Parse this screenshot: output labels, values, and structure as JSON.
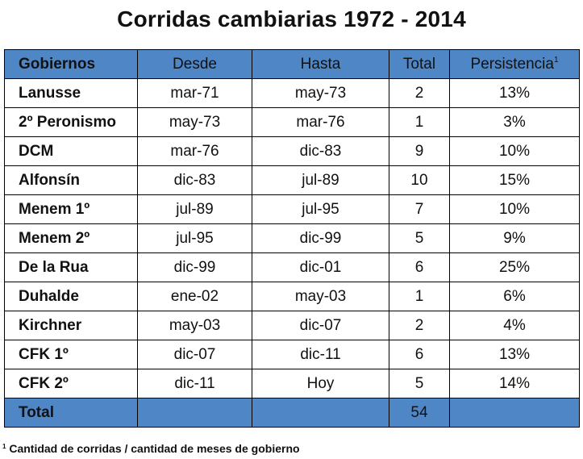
{
  "title": "Corridas cambiarias 1972 - 2014",
  "table": {
    "headers": {
      "gobiernos": "Gobiernos",
      "desde": "Desde",
      "hasta": "Hasta",
      "total": "Total",
      "persistencia": "Persistencia",
      "persistencia_sup": "1"
    },
    "rows": [
      {
        "gobierno": "Lanusse",
        "desde": "mar-71",
        "hasta": "may-73",
        "total": "2",
        "persistencia": "13%"
      },
      {
        "gobierno": "2º Peronismo",
        "desde": "may-73",
        "hasta": "mar-76",
        "total": "1",
        "persistencia": "3%"
      },
      {
        "gobierno": "DCM",
        "desde": "mar-76",
        "hasta": "dic-83",
        "total": "9",
        "persistencia": "10%"
      },
      {
        "gobierno": "Alfonsín",
        "desde": "dic-83",
        "hasta": "jul-89",
        "total": "10",
        "persistencia": "15%"
      },
      {
        "gobierno": "Menem 1º",
        "desde": "jul-89",
        "hasta": "jul-95",
        "total": "7",
        "persistencia": "10%"
      },
      {
        "gobierno": "Menem 2º",
        "desde": "jul-95",
        "hasta": "dic-99",
        "total": "5",
        "persistencia": "9%"
      },
      {
        "gobierno": "De la Rua",
        "desde": "dic-99",
        "hasta": "dic-01",
        "total": "6",
        "persistencia": "25%"
      },
      {
        "gobierno": "Duhalde",
        "desde": "ene-02",
        "hasta": "may-03",
        "total": "1",
        "persistencia": "6%"
      },
      {
        "gobierno": "Kirchner",
        "desde": "may-03",
        "hasta": "dic-07",
        "total": "2",
        "persistencia": "4%"
      },
      {
        "gobierno": "CFK 1º",
        "desde": "dic-07",
        "hasta": "dic-11",
        "total": "6",
        "persistencia": "13%"
      },
      {
        "gobierno": "CFK 2º",
        "desde": "dic-11",
        "hasta": "Hoy",
        "total": "5",
        "persistencia": "14%"
      }
    ],
    "total_row": {
      "label": "Total",
      "total": "54"
    }
  },
  "footnote": {
    "marker": "1",
    "text": "Cantidad de corridas / cantidad de meses de gobierno"
  },
  "colors": {
    "header_bg": "#4f86c6",
    "border": "#000000"
  }
}
